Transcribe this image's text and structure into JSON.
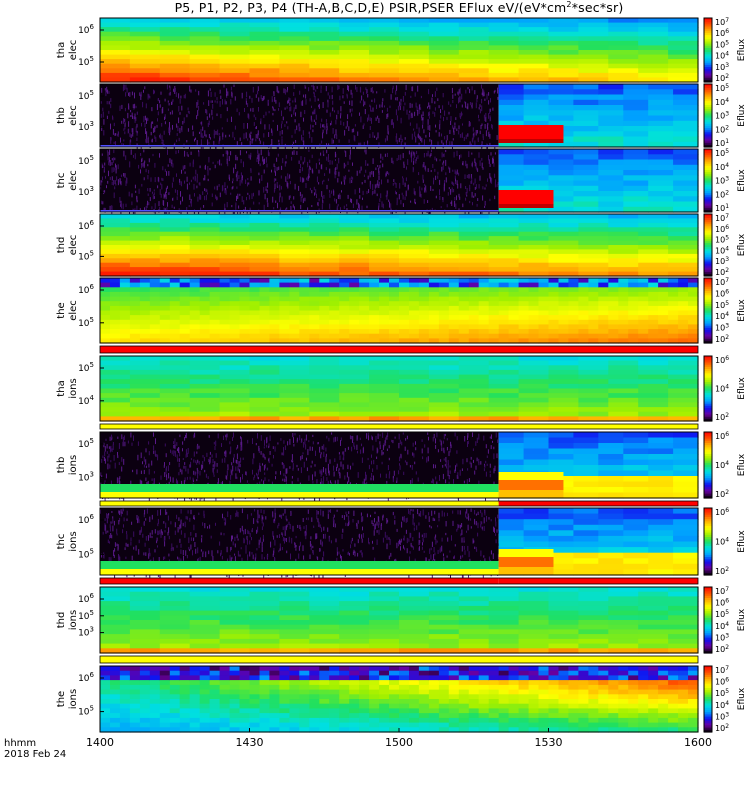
{
  "title": {
    "prefix": "P5, P1, P2, P3, P4 (TH-A,B,C,D,E) PSIR,PSER EFlux eV/(eV*cm",
    "sup": "2",
    "suffix": "*sec*sr)"
  },
  "footer": {
    "line1": "hhmm",
    "line2": "2018 Feb 24"
  },
  "chart_data": {
    "type": "heatmap",
    "x_ticks": [
      "1400",
      "1430",
      "1500",
      "1530",
      "1600"
    ],
    "x_range": [
      "14:00",
      "16:00"
    ],
    "colorbar_label": "Eflux",
    "colormap": [
      "#000000",
      "#6a00a0",
      "#1010f0",
      "#00a0ff",
      "#00e0e0",
      "#20e060",
      "#a0f000",
      "#ffff00",
      "#ffb000",
      "#ff5000",
      "#ff0000"
    ],
    "panels": [
      {
        "id": "tha_elec",
        "probe": "tha",
        "species": "elec",
        "y_ticks": [
          "10^6",
          "10^5"
        ],
        "cbar_ticks": [
          "10^7",
          "10^6",
          "10^5",
          "10^4",
          "10^3",
          "10^2"
        ],
        "pattern": "elec-full",
        "intensity": 0.75,
        "flag_bar": false
      },
      {
        "id": "thb_elec",
        "probe": "thb",
        "species": "elec",
        "y_ticks": [
          "10^5",
          "10^3"
        ],
        "cbar_ticks": [
          "10^5",
          "10^4",
          "10^3",
          "10^2",
          "10^1"
        ],
        "pattern": "noise-then-data",
        "switch_time": "15:20",
        "red_block_end": "15:33",
        "flag_bar": false
      },
      {
        "id": "thc_elec",
        "probe": "thc",
        "species": "elec",
        "y_ticks": [
          "10^5",
          "10^3"
        ],
        "cbar_ticks": [
          "10^5",
          "10^4",
          "10^3",
          "10^2",
          "10^1"
        ],
        "pattern": "noise-then-data",
        "switch_time": "15:20",
        "red_block_end": "15:31",
        "flag_bar": false
      },
      {
        "id": "thd_elec",
        "probe": "thd",
        "species": "elec",
        "y_ticks": [
          "10^6",
          "10^5"
        ],
        "cbar_ticks": [
          "10^7",
          "10^6",
          "10^5",
          "10^4",
          "10^3",
          "10^2"
        ],
        "pattern": "elec-full",
        "intensity": 0.85,
        "flag_bar": false
      },
      {
        "id": "the_elec",
        "probe": "the",
        "species": "elec",
        "y_ticks": [
          "10^6",
          "10^5"
        ],
        "cbar_ticks": [
          "10^7",
          "10^6",
          "10^5",
          "10^4",
          "10^3",
          "10^2"
        ],
        "pattern": "the-elec",
        "flag_bar": true,
        "flag_colors": [
          "red",
          "red"
        ]
      },
      {
        "id": "tha_ions",
        "probe": "tha",
        "species": "ions",
        "y_ticks": [
          "10^5",
          "10^4"
        ],
        "cbar_ticks": [
          "10^6",
          "10^4",
          "10^2"
        ],
        "pattern": "ions-full",
        "flag_bar": true,
        "flag_colors": [
          "yellow",
          "yellow"
        ]
      },
      {
        "id": "thb_ions",
        "probe": "thb",
        "species": "ions",
        "y_ticks": [
          "10^5",
          "10^3"
        ],
        "cbar_ticks": [
          "10^6",
          "10^4",
          "10^2"
        ],
        "pattern": "ions-noise",
        "switch_time": "15:20",
        "block_end": "15:33",
        "flag_bar": true,
        "flag_colors": [
          "yellow",
          "red"
        ]
      },
      {
        "id": "thc_ions",
        "probe": "thc",
        "species": "ions",
        "y_ticks": [
          "10^6",
          "10^5"
        ],
        "cbar_ticks": [
          "10^6",
          "10^4",
          "10^2"
        ],
        "pattern": "ions-noise",
        "switch_time": "15:20",
        "block_end": "15:31",
        "flag_bar": true,
        "flag_colors": [
          "red",
          "red"
        ]
      },
      {
        "id": "thd_ions",
        "probe": "thd",
        "species": "ions",
        "y_ticks": [
          "10^6",
          "10^5",
          "10^3"
        ],
        "cbar_ticks": [
          "10^7",
          "10^6",
          "10^5",
          "10^4",
          "10^3",
          "10^2"
        ],
        "pattern": "ions-full",
        "flag_bar": true,
        "flag_colors": [
          "yellow",
          "yellow"
        ]
      },
      {
        "id": "the_ions",
        "probe": "the",
        "species": "ions",
        "y_ticks": [
          "10^6",
          "10^5"
        ],
        "cbar_ticks": [
          "10^7",
          "10^6",
          "10^5",
          "10^4",
          "10^3",
          "10^2"
        ],
        "pattern": "the-ions",
        "flag_bar": false
      }
    ]
  }
}
